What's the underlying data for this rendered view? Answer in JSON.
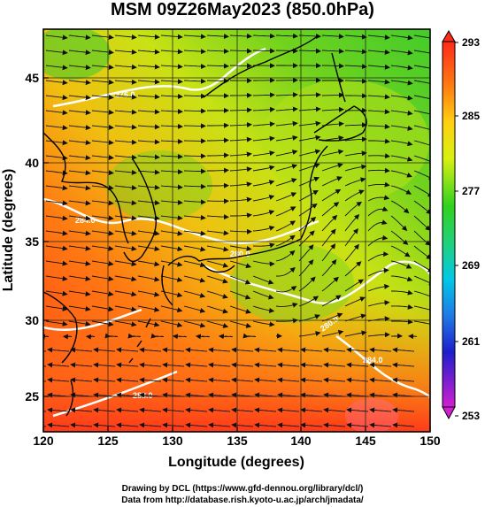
{
  "title": "MSM 09Z26May2023 (850.0hPa)",
  "xlabel": "Longitude (degrees)",
  "ylabel": "Latitude  (degrees)",
  "x_ticks": [
    "120",
    "125",
    "130",
    "135",
    "140",
    "145",
    "150"
  ],
  "y_ticks": [
    "25",
    "30",
    "35",
    "40",
    "45"
  ],
  "colorbar_ticks": [
    "293",
    "285",
    "277",
    "269",
    "261",
    "253"
  ],
  "contour_labels": [
    "276.0",
    "284.0",
    "280.0",
    "280.0",
    "284.0",
    "288.0"
  ],
  "credits_line1": "Drawing by DCL (https://www.gfd-dennou.org/library/dcl/)",
  "credits_line2": "Data from http://database.rish.kyoto-u.ac.jp/arch/jmadata/",
  "chart_data": {
    "type": "heatmap",
    "title": "MSM 09Z26May2023 (850.0hPa)",
    "xlabel": "Longitude (degrees)",
    "ylabel": "Latitude  (degrees)",
    "xlim": [
      120,
      150
    ],
    "ylim": [
      22.4,
      47.6
    ],
    "colorbar_range": [
      253,
      293
    ],
    "colorbar_ticks": [
      293,
      285,
      277,
      269,
      261,
      253
    ],
    "overlays": [
      "streamlines",
      "coastlines",
      "isotherms",
      "grid"
    ],
    "grid": true
  },
  "colors": {
    "warm": "#ff3c1e",
    "mid": "#e6e600",
    "cool": "#32d21e",
    "cyan": "#00c8e6",
    "blue": "#1e1ecc",
    "magenta": "#d21ed2"
  }
}
